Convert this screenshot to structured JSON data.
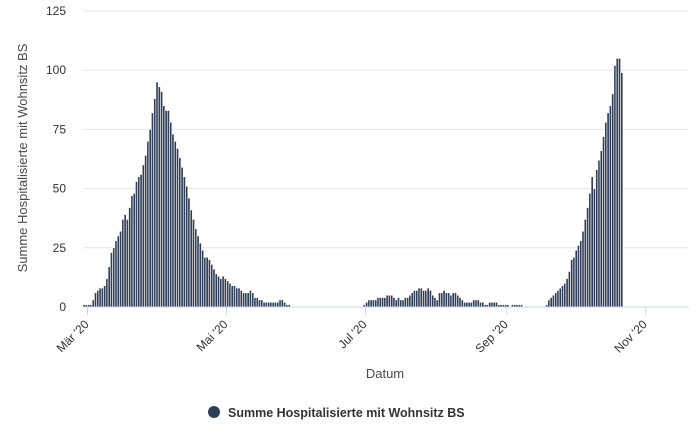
{
  "chart_data": {
    "type": "bar",
    "xlabel": "Datum",
    "ylabel": "Summe Hospitalisierte mit Wohnsitz BS",
    "ylim": [
      0,
      125
    ],
    "yticks": [
      "0",
      "25",
      "50",
      "75",
      "100",
      "125"
    ],
    "xtick_labels": [
      {
        "date": "2020-03-01",
        "label": "Mär '20"
      },
      {
        "date": "2020-05-01",
        "label": "Mai '20"
      },
      {
        "date": "2020-07-01",
        "label": "Jul '20"
      },
      {
        "date": "2020-09-01",
        "label": "Sep '20"
      },
      {
        "date": "2020-11-01",
        "label": "Nov '20"
      }
    ],
    "grid": true,
    "legend_position": "bottom",
    "series": [
      {
        "name": "Summe Hospitalisierte mit Wohnsitz BS",
        "color": "#2f3e56",
        "x_start": "2020-02-28",
        "x_end": "2020-11-19",
        "values": [
          1,
          1,
          1,
          1,
          3,
          6,
          7,
          8,
          8,
          9,
          12,
          17,
          23,
          25,
          28,
          30,
          32,
          37,
          39,
          37,
          42,
          47,
          48,
          53,
          55,
          56,
          60,
          64,
          70,
          75,
          82,
          88,
          95,
          93,
          91,
          85,
          83,
          83,
          78,
          73,
          70,
          67,
          63,
          59,
          55,
          51,
          46,
          41,
          37,
          33,
          30,
          27,
          24,
          21,
          21,
          20,
          18,
          16,
          14,
          13,
          12,
          13,
          12,
          11,
          10,
          9,
          9,
          8,
          8,
          7,
          6,
          6,
          6,
          7,
          6,
          4,
          4,
          3,
          3,
          2,
          2,
          2,
          2,
          2,
          2,
          2,
          3,
          3,
          2,
          1,
          1,
          0,
          0,
          0,
          0,
          0,
          0,
          0,
          0,
          0,
          0,
          0,
          0,
          0,
          0,
          0,
          0,
          0,
          0,
          0,
          0,
          0,
          0,
          0,
          0,
          0,
          0,
          0,
          0,
          0,
          0,
          0,
          0,
          1,
          2,
          3,
          3,
          3,
          3,
          4,
          4,
          4,
          4,
          5,
          5,
          5,
          4,
          3,
          4,
          3,
          3,
          4,
          4,
          5,
          6,
          7,
          7,
          8,
          8,
          7,
          7,
          8,
          7,
          5,
          4,
          3,
          6,
          6,
          7,
          6,
          6,
          5,
          6,
          6,
          5,
          4,
          3,
          2,
          2,
          2,
          2,
          3,
          3,
          3,
          2,
          2,
          1,
          1,
          2,
          2,
          2,
          2,
          1,
          1,
          1,
          1,
          1,
          0,
          1,
          1,
          1,
          1,
          1,
          0,
          0,
          0,
          0,
          0,
          0,
          0,
          0,
          0,
          0,
          1,
          3,
          4,
          5,
          6,
          7,
          8,
          9,
          10,
          12,
          15,
          20,
          21,
          24,
          26,
          28,
          32,
          37,
          42,
          48,
          55,
          50,
          58,
          62,
          66,
          72,
          78,
          82,
          85,
          90,
          102,
          105,
          105,
          99
        ]
      }
    ]
  }
}
